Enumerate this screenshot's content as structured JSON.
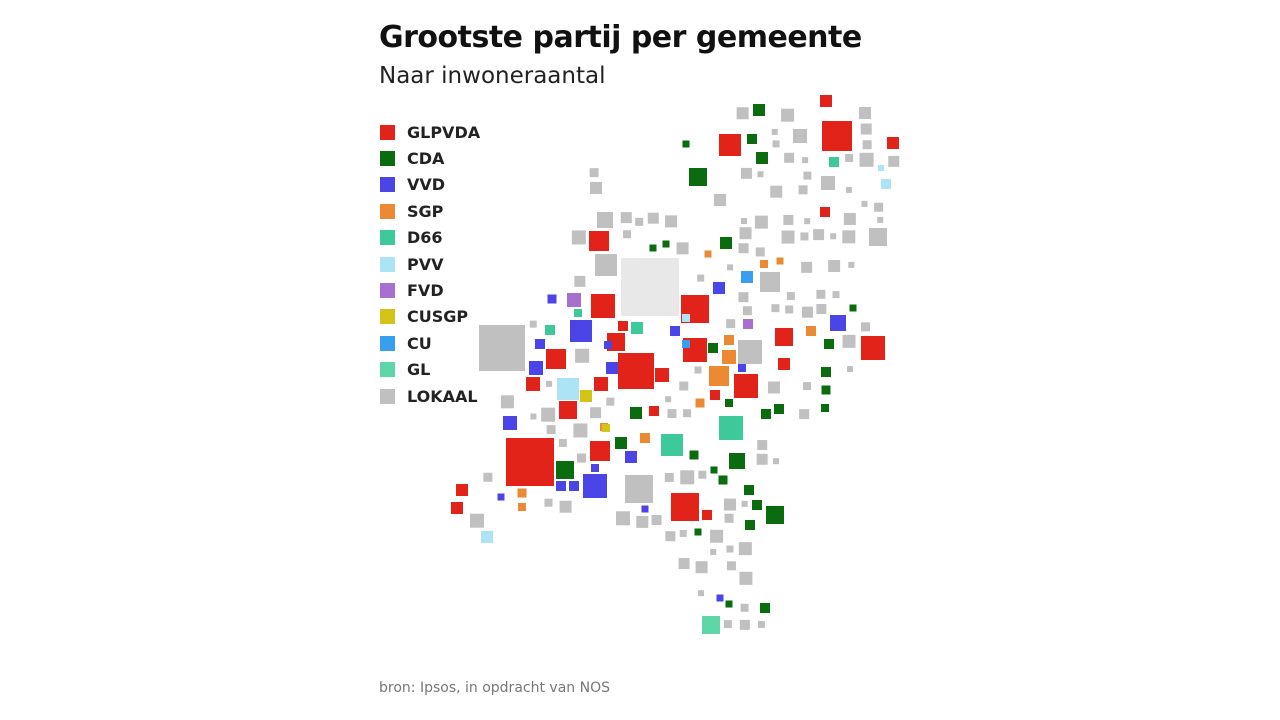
{
  "header": {
    "title": "Grootste partij per gemeente",
    "subtitle": "Naar inwoneraantal"
  },
  "legend": [
    {
      "label": "GLPVDA",
      "color": "#e2231a"
    },
    {
      "label": "CDA",
      "color": "#0a6b0f"
    },
    {
      "label": "VVD",
      "color": "#4b45e8"
    },
    {
      "label": "SGP",
      "color": "#ec8a34"
    },
    {
      "label": "D66",
      "color": "#3ec99a"
    },
    {
      "label": "PVV",
      "color": "#ace4f5"
    },
    {
      "label": "FVD",
      "color": "#a66fd0"
    },
    {
      "label": "CUSGP",
      "color": "#d4c417"
    },
    {
      "label": "CU",
      "color": "#3a9ef0"
    },
    {
      "label": "GL",
      "color": "#5fd6a8"
    },
    {
      "label": "LOKAAL",
      "color": "#c0c0c0"
    }
  ],
  "footer": {
    "source": "bron: Ipsos, in opdracht van NOS"
  }
}
